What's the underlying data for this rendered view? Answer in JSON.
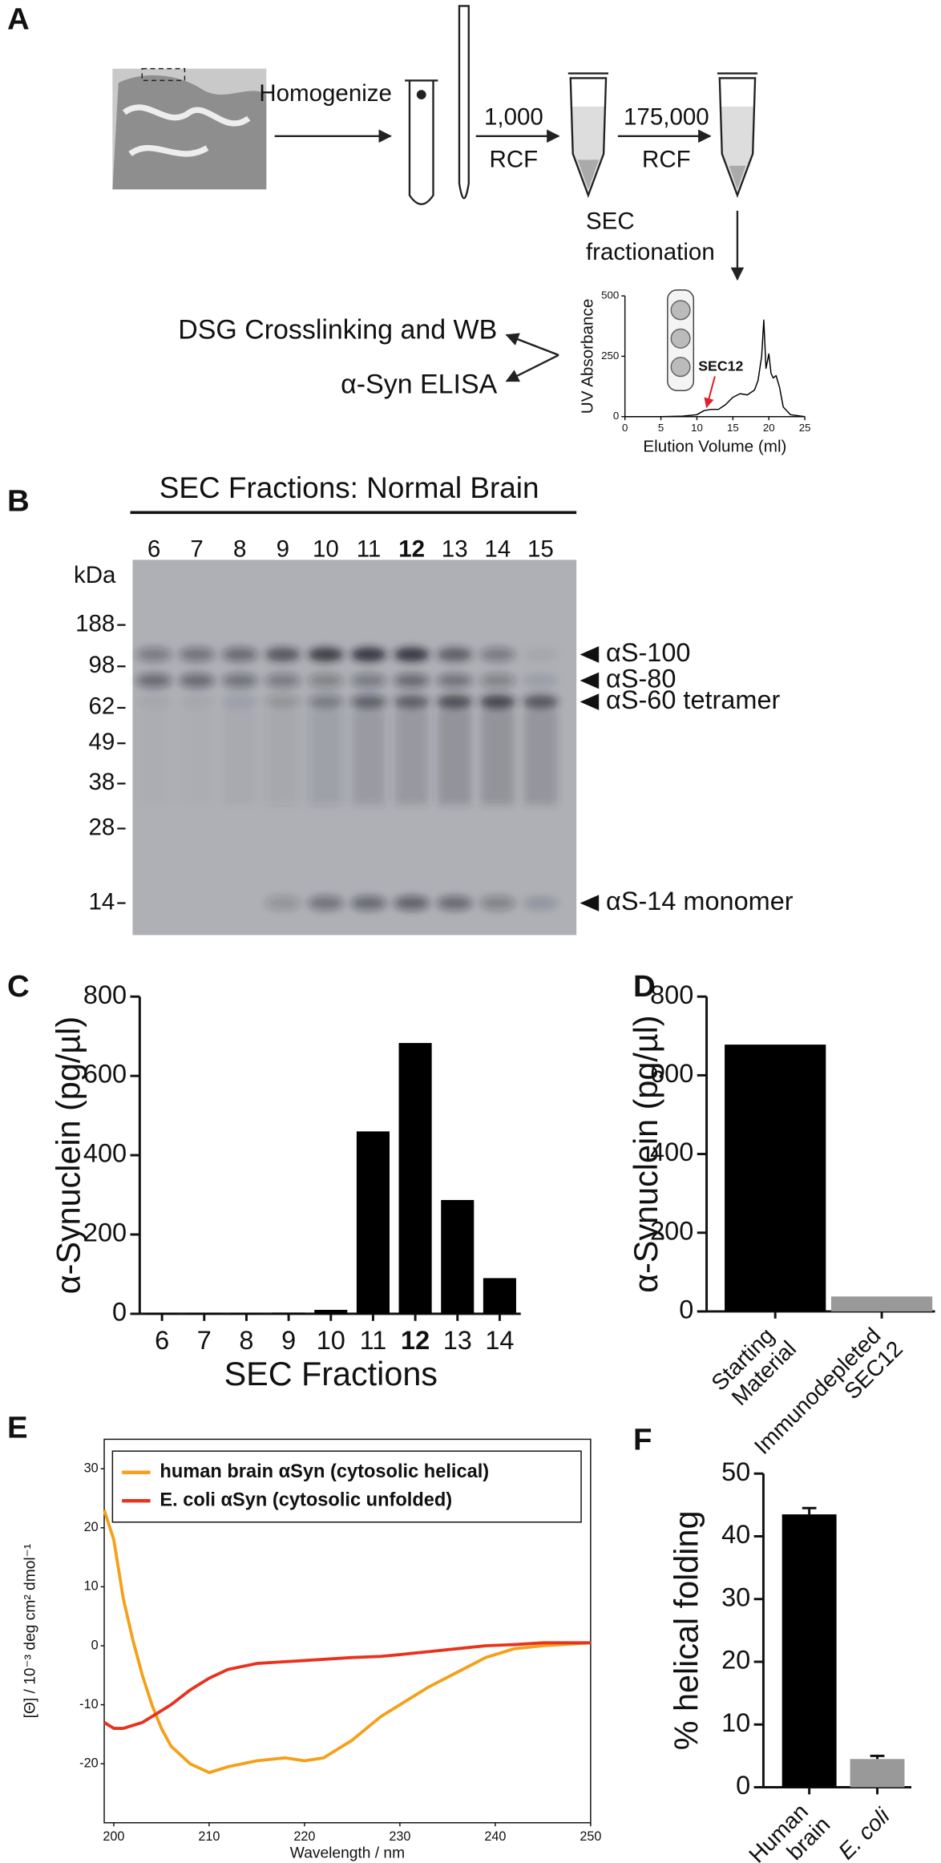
{
  "panel_labels": [
    "A",
    "B",
    "C",
    "D",
    "E",
    "F"
  ],
  "workflow": {
    "homogenize": "Homogenize",
    "spin1": [
      "1,000",
      "RCF"
    ],
    "spin2": [
      "175,000",
      "RCF"
    ],
    "sec": [
      "SEC",
      "fractionation"
    ],
    "outputs": [
      "DSG Crosslinking and WB",
      "α-Syn ELISA"
    ]
  },
  "gel": {
    "title": "SEC Fractions: Normal Brain",
    "lanes": [
      6,
      7,
      8,
      9,
      10,
      11,
      12,
      13,
      14,
      15
    ],
    "highlight_lane": 6,
    "highlight_color": "#e0202a",
    "marker_unit": "kDa",
    "markers": [
      188,
      98,
      62,
      49,
      38,
      28,
      14
    ],
    "bands": [
      "αS-100",
      "αS-80",
      "αS-60 tetramer",
      "αS-14 monomer"
    ]
  },
  "chart_data": [
    {
      "type": "line",
      "xlabel": "Elution Volume (ml)",
      "ylabel": "UV Absorbance",
      "x": [
        0,
        5,
        8,
        10,
        11,
        12,
        13,
        14,
        15,
        16,
        17,
        18,
        18.5,
        19,
        19.3,
        19.6,
        20,
        20.3,
        20.6,
        21,
        21.5,
        22,
        23,
        25
      ],
      "series": [
        {
          "color": "#000000",
          "values": [
            0,
            0,
            2,
            8,
            25,
            30,
            30,
            50,
            80,
            95,
            90,
            110,
            150,
            250,
            400,
            200,
            260,
            180,
            160,
            170,
            120,
            40,
            8,
            0
          ]
        }
      ],
      "xlim": [
        0,
        25
      ],
      "ylim": [
        0,
        500
      ],
      "xticks": [
        0,
        5,
        10,
        15,
        20,
        25
      ],
      "yticks": [
        0,
        250,
        500
      ],
      "annotation": "SEC12",
      "annotation_color": "#e0202a"
    },
    {
      "type": "bar",
      "ylabel": "α-Synuclein (pg/µl)",
      "xlabel": "SEC Fractions",
      "categories": [
        "6",
        "7",
        "8",
        "9",
        "10",
        "11",
        "12",
        "13",
        "14"
      ],
      "values": [
        2,
        2,
        2,
        3,
        10,
        460,
        683,
        287,
        90
      ],
      "color": "#000000",
      "highlight_index": 6,
      "highlight_color": "#e0202a",
      "ylim": [
        0,
        800
      ],
      "yticks": [
        0,
        200,
        400,
        600,
        800
      ]
    },
    {
      "type": "bar",
      "ylabel": "α-Synuclein (pg/µl)",
      "categories": [
        "Starting Material",
        "Immunodepleted SEC12"
      ],
      "values": [
        678,
        38
      ],
      "colors": [
        "#000000",
        "#999999"
      ],
      "ylim": [
        0,
        800
      ],
      "yticks": [
        0,
        200,
        400,
        600,
        800
      ]
    },
    {
      "type": "line",
      "xlabel": "Wavelength / nm",
      "ylabel": "[Θ] / 10⁻³ deg cm² dmol⁻¹",
      "x": [
        199,
        200,
        201,
        202,
        203,
        204,
        205,
        206,
        208,
        210,
        212,
        215,
        218,
        220,
        222,
        225,
        228,
        230,
        233,
        236,
        239,
        242,
        245,
        250
      ],
      "series": [
        {
          "name": "human brain αSyn (cytosolic helical)",
          "color": "#f5a01a",
          "values": [
            23,
            18,
            8,
            1,
            -5,
            -10,
            -14,
            -17,
            -20,
            -21.5,
            -20.5,
            -19.5,
            -19,
            -19.5,
            -19,
            -16,
            -12,
            -10,
            -7,
            -4.5,
            -2,
            -0.5,
            0,
            0.5
          ]
        },
        {
          "name": "E. coli αSyn (cytosolic unfolded)",
          "color": "#e8321e",
          "values": [
            -13,
            -14,
            -14,
            -13.5,
            -13,
            -12,
            -11,
            -10,
            -7.5,
            -5.5,
            -4,
            -3,
            -2.7,
            -2.5,
            -2.3,
            -2,
            -1.8,
            -1.5,
            -1,
            -0.5,
            0,
            0.2,
            0.5,
            0.5
          ]
        }
      ],
      "xlim": [
        199,
        250
      ],
      "ylim": [
        -30,
        35
      ],
      "xticks": [
        200,
        210,
        220,
        230,
        240,
        250
      ],
      "yticks": [
        -20,
        -10,
        0,
        10,
        20,
        30
      ],
      "legend": "upper left",
      "frame": true
    },
    {
      "type": "bar",
      "ylabel": "% helical folding",
      "categories": [
        "Human brain",
        "E. coli"
      ],
      "category_styles": [
        "normal",
        "italic"
      ],
      "values": [
        43.5,
        4.5
      ],
      "errors": [
        1,
        0.5
      ],
      "colors": [
        "#000000",
        "#999999"
      ],
      "ylim": [
        0,
        50
      ],
      "yticks": [
        0,
        10,
        20,
        30,
        40,
        50
      ]
    }
  ]
}
